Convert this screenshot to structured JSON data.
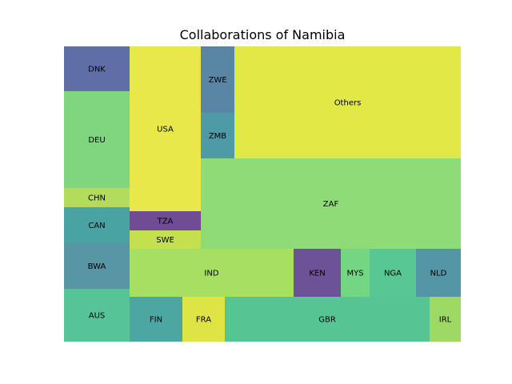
{
  "chart_data": {
    "type": "treemap",
    "title": "Collaborations of Namibia",
    "items": [
      {
        "label": "DNK",
        "value": 4.6,
        "color": "#5f6ea6"
      },
      {
        "label": "DEU",
        "value": 10,
        "color": "#7fd67f"
      },
      {
        "label": "CHN",
        "value": 2,
        "color": "#b3dc5d"
      },
      {
        "label": "CAN",
        "value": 3.7,
        "color": "#4aa3a3"
      },
      {
        "label": "BWA",
        "value": 4.7,
        "color": "#5896a6"
      },
      {
        "label": "AUS",
        "value": 5.4,
        "color": "#56c496"
      },
      {
        "label": "USA",
        "value": 18,
        "color": "#e8e84a"
      },
      {
        "label": "TZA",
        "value": 2,
        "color": "#6f4c93"
      },
      {
        "label": "SWE",
        "value": 2,
        "color": "#c4e04e"
      },
      {
        "label": "ZWE",
        "value": 3.6,
        "color": "#5a86a6"
      },
      {
        "label": "ZMB",
        "value": 2.5,
        "color": "#4e9aa6"
      },
      {
        "label": "Others",
        "value": 24,
        "color": "#e2e845"
      },
      {
        "label": "ZAF",
        "value": 36,
        "color": "#8fdb78"
      },
      {
        "label": "IND",
        "value": 12,
        "color": "#a6df62"
      },
      {
        "label": "KEN",
        "value": 3.5,
        "color": "#6d5298"
      },
      {
        "label": "MYS",
        "value": 2.1,
        "color": "#74d683"
      },
      {
        "label": "NGA",
        "value": 3.4,
        "color": "#58c794"
      },
      {
        "label": "NLD",
        "value": 3.4,
        "color": "#5496a6"
      },
      {
        "label": "FIN",
        "value": 3.6,
        "color": "#4ca7a3"
      },
      {
        "label": "FRA",
        "value": 2.9,
        "color": "#dde444"
      },
      {
        "label": "GBR",
        "value": 14,
        "color": "#57c593"
      },
      {
        "label": "IRL",
        "value": 2.1,
        "color": "#9ed966"
      }
    ]
  }
}
